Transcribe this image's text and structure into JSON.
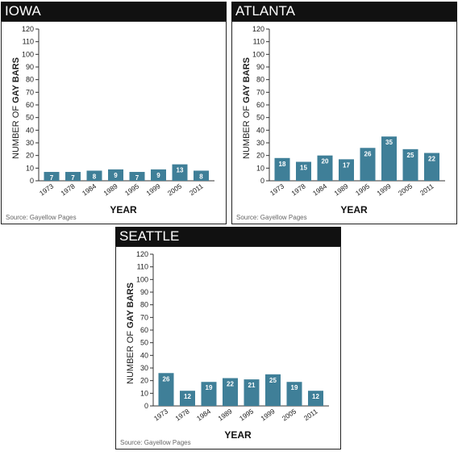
{
  "style": {
    "bar_color": "#3f7f98",
    "header_bg": "#111111",
    "axis_color": "#333333"
  },
  "chart_data": [
    {
      "type": "bar",
      "title": "IOWA",
      "categories": [
        "1973",
        "1978",
        "1984",
        "1989",
        "1995",
        "1999",
        "2005",
        "2011"
      ],
      "values": [
        7,
        7,
        8,
        9,
        7,
        9,
        13,
        8
      ],
      "xlabel": "YEAR",
      "ylabel_prefix": "NUMBER OF ",
      "ylabel_bold": "GAY BARS",
      "ylim": [
        0,
        120
      ],
      "yticks": [
        0,
        10,
        20,
        30,
        40,
        50,
        60,
        70,
        80,
        90,
        100,
        110,
        120
      ],
      "source": "Source: Gayellow Pages",
      "grid": false
    },
    {
      "type": "bar",
      "title": "ATLANTA",
      "categories": [
        "1973",
        "1978",
        "1984",
        "1989",
        "1995",
        "1999",
        "2005",
        "2011"
      ],
      "values": [
        18,
        15,
        20,
        17,
        26,
        35,
        25,
        22
      ],
      "xlabel": "YEAR",
      "ylabel_prefix": "NUMBER OF ",
      "ylabel_bold": "GAY BARS",
      "ylim": [
        0,
        120
      ],
      "yticks": [
        0,
        10,
        20,
        30,
        40,
        50,
        60,
        70,
        80,
        90,
        100,
        110,
        120
      ],
      "source": "Source: Gayellow Pages",
      "grid": false
    },
    {
      "type": "bar",
      "title": "SEATTLE",
      "categories": [
        "1973",
        "1978",
        "1984",
        "1989",
        "1995",
        "1999",
        "2005",
        "2011"
      ],
      "values": [
        26,
        12,
        19,
        22,
        21,
        25,
        19,
        12
      ],
      "xlabel": "YEAR",
      "ylabel_prefix": "NUMBER OF ",
      "ylabel_bold": "GAY BARS",
      "ylim": [
        0,
        120
      ],
      "yticks": [
        0,
        10,
        20,
        30,
        40,
        50,
        60,
        70,
        80,
        90,
        100,
        110,
        120
      ],
      "source": "Source: Gayellow Pages",
      "grid": false
    }
  ]
}
